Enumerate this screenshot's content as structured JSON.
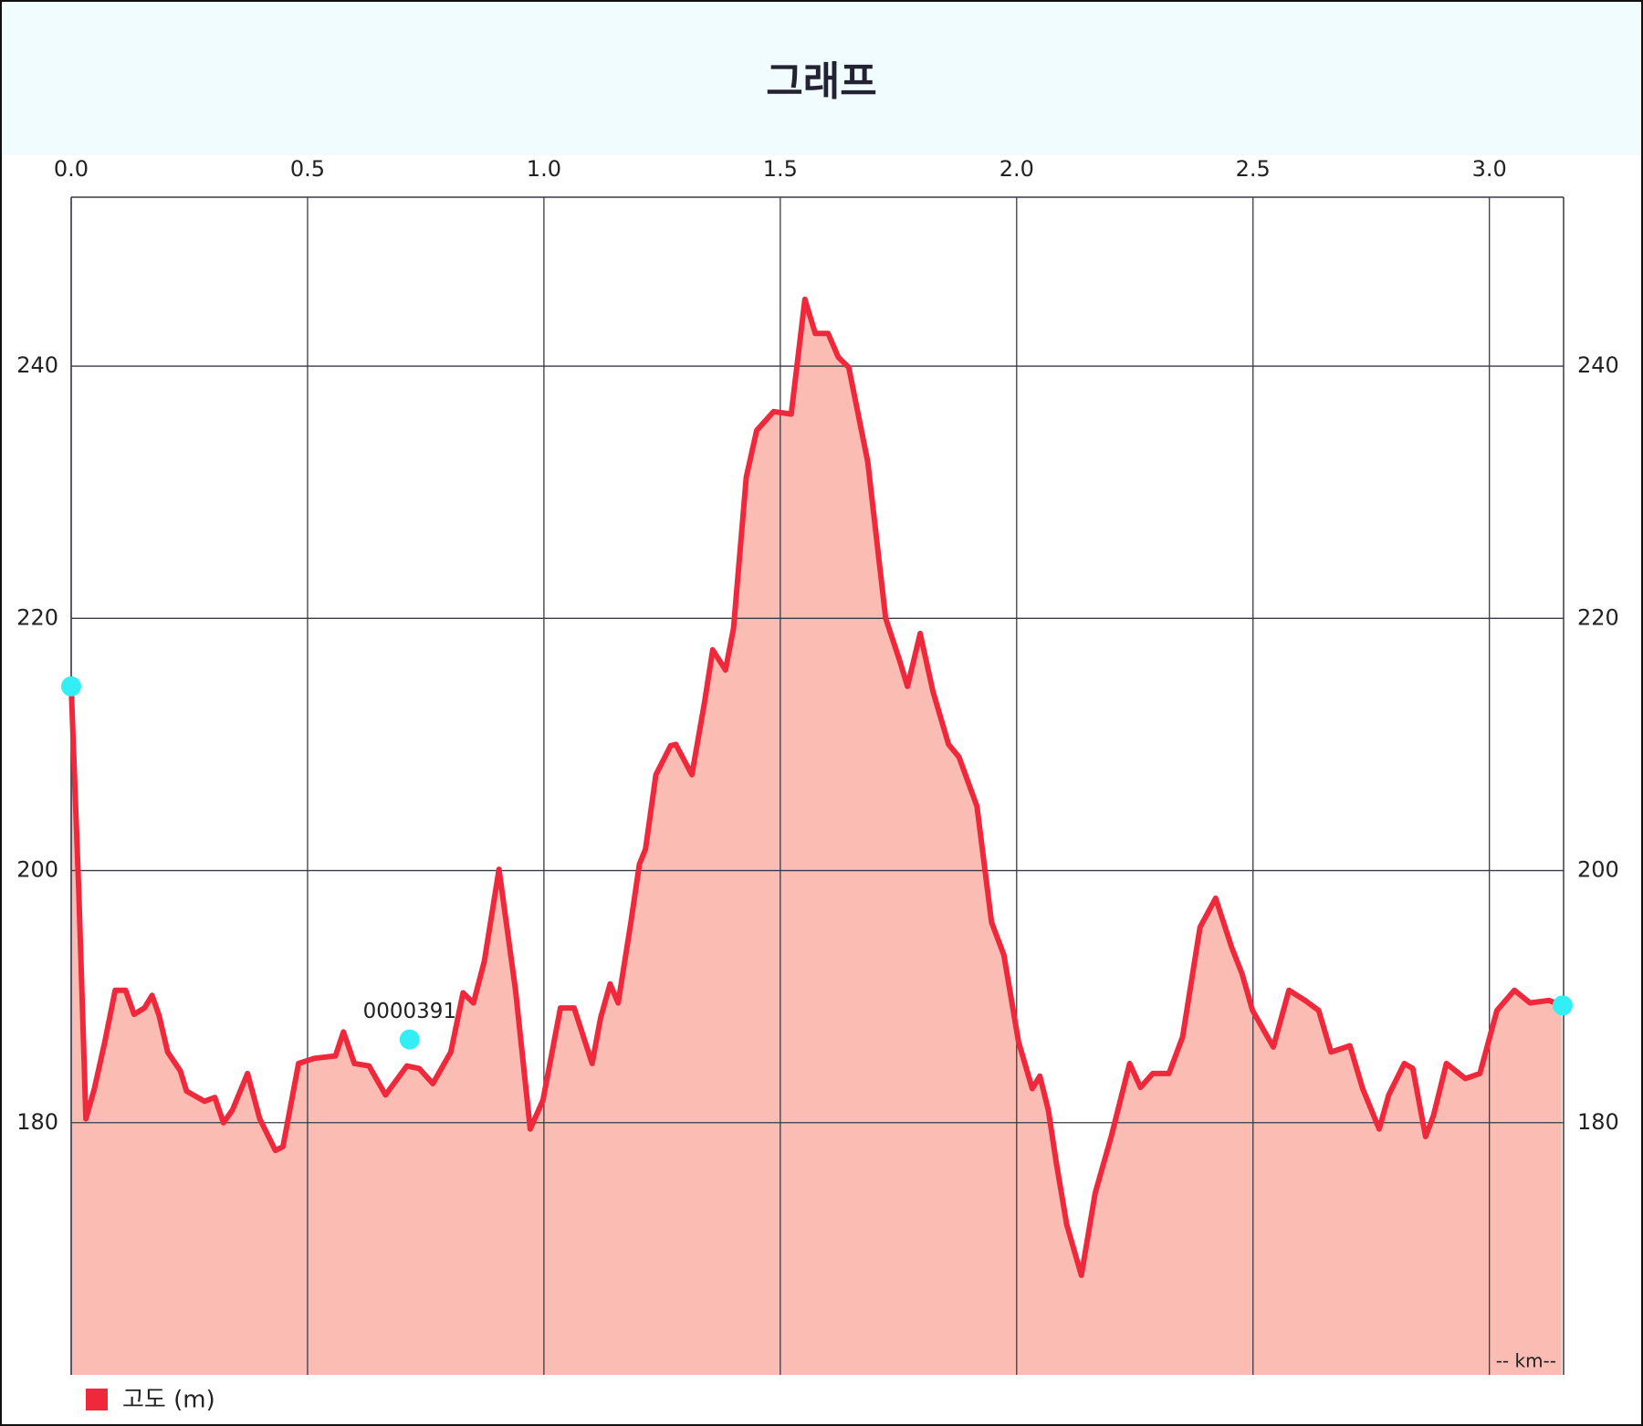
{
  "chart_data": {
    "type": "area",
    "title": "그래프",
    "x_unit_label": "-- km--",
    "xlim": [
      0,
      3.157
    ],
    "xticks": [
      {
        "value": 0,
        "label": "0.0"
      },
      0.5,
      {
        "value": 1,
        "label": "1.0"
      },
      1.5,
      {
        "value": 2,
        "label": "2.0"
      },
      2.5,
      {
        "value": 3,
        "label": "3.0"
      }
    ],
    "ylim": [
      160,
      253.4
    ],
    "yticks": [
      180,
      200,
      220,
      240
    ],
    "grid": true,
    "x": [
      0,
      0.016,
      0.031,
      0.049,
      0.071,
      0.093,
      0.115,
      0.133,
      0.155,
      0.171,
      0.186,
      0.204,
      0.231,
      0.244,
      0.282,
      0.304,
      0.322,
      0.341,
      0.373,
      0.399,
      0.432,
      0.448,
      0.481,
      0.514,
      0.559,
      0.576,
      0.599,
      0.63,
      0.665,
      0.71,
      0.736,
      0.765,
      0.803,
      0.829,
      0.851,
      0.874,
      0.905,
      0.94,
      0.971,
      0.998,
      1.035,
      1.064,
      1.102,
      1.12,
      1.14,
      1.157,
      1.184,
      1.202,
      1.215,
      1.237,
      1.268,
      1.279,
      1.313,
      1.34,
      1.357,
      1.384,
      1.401,
      1.428,
      1.45,
      1.486,
      1.523,
      1.552,
      1.574,
      1.601,
      1.623,
      1.645,
      1.685,
      1.723,
      1.752,
      1.769,
      1.796,
      1.823,
      1.856,
      1.878,
      1.916,
      1.947,
      1.973,
      2.004,
      2.033,
      2.049,
      2.067,
      2.084,
      2.106,
      2.137,
      2.166,
      2.2,
      2.239,
      2.262,
      2.288,
      2.322,
      2.351,
      2.388,
      2.421,
      2.455,
      2.477,
      2.499,
      2.543,
      2.576,
      2.61,
      2.639,
      2.665,
      2.705,
      2.732,
      2.767,
      2.787,
      2.82,
      2.838,
      2.865,
      2.882,
      2.909,
      2.949,
      2.98,
      3.016,
      3.053,
      3.086,
      3.126,
      3.153
    ],
    "series": [
      {
        "name": "고도 (m)",
        "color": "#f0283c",
        "fill": "#fbbcb3",
        "values": [
          214.6,
          198.4,
          180.3,
          182.7,
          186.4,
          190.5,
          190.5,
          188.6,
          189.1,
          190.1,
          188.5,
          185.6,
          184.1,
          182.5,
          181.7,
          182,
          180,
          181,
          183.9,
          180.3,
          177.8,
          178.1,
          184.7,
          185.1,
          185.3,
          187.2,
          184.7,
          184.5,
          182.2,
          184.5,
          184.3,
          183.1,
          185.6,
          190.3,
          189.5,
          192.8,
          200.1,
          190.5,
          179.5,
          181.8,
          189.1,
          189.1,
          184.7,
          188.3,
          191,
          189.5,
          195.9,
          200.5,
          201.7,
          207.6,
          209.9,
          210,
          207.6,
          213.4,
          217.5,
          215.9,
          219.2,
          231.2,
          234.9,
          236.4,
          236.2,
          245.3,
          242.6,
          242.6,
          240.7,
          239.9,
          232.4,
          220,
          216.7,
          214.6,
          218.8,
          214.2,
          210,
          209,
          205.1,
          195.9,
          193.3,
          186.4,
          182.7,
          183.7,
          181,
          176.8,
          171.9,
          167.9,
          174.4,
          178.9,
          184.7,
          182.8,
          183.9,
          183.9,
          186.8,
          195.5,
          197.8,
          193.9,
          191.8,
          188.9,
          186,
          190.5,
          189.7,
          188.9,
          185.6,
          186.1,
          182.7,
          179.5,
          182.2,
          184.7,
          184.3,
          178.9,
          180.6,
          184.7,
          183.5,
          183.9,
          188.9,
          190.5,
          189.5,
          189.7,
          189.3
        ]
      }
    ],
    "markers": [
      {
        "x": 0,
        "y": 214.6
      },
      {
        "x": 0.716,
        "y": 186.6,
        "label": "0000391"
      },
      {
        "x": 3.155,
        "y": 189.3
      }
    ],
    "marker_color": "#33eef4"
  }
}
